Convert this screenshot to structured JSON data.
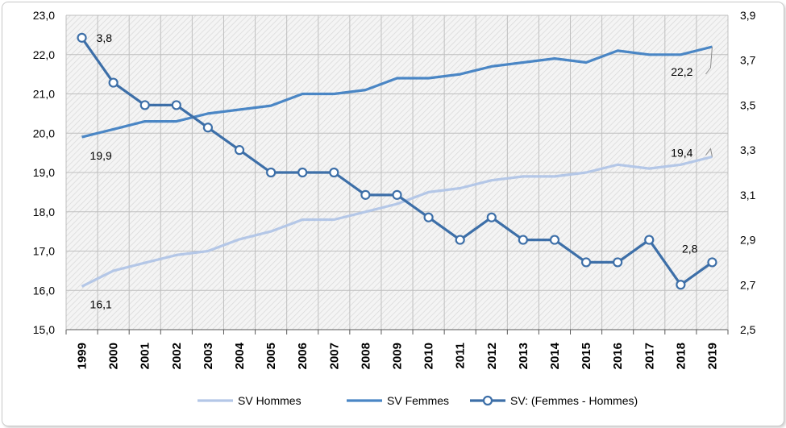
{
  "chart_data": {
    "type": "line",
    "categories": [
      "1999",
      "2000",
      "2001",
      "2002",
      "2003",
      "2004",
      "2005",
      "2006",
      "2007",
      "2008",
      "2009",
      "2010",
      "2011",
      "2012",
      "2013",
      "2014",
      "2015",
      "2016",
      "2017",
      "2018",
      "2019"
    ],
    "series": [
      {
        "name": "SV Hommes",
        "axis": "left",
        "color": "#b4c7e7",
        "values": [
          16.1,
          16.5,
          16.7,
          16.9,
          17.0,
          17.3,
          17.5,
          17.8,
          17.8,
          18.0,
          18.2,
          18.5,
          18.6,
          18.8,
          18.9,
          18.9,
          19.0,
          19.2,
          19.1,
          19.2,
          19.4
        ]
      },
      {
        "name": "SV Femmes",
        "axis": "left",
        "color": "#4a86c5",
        "values": [
          19.9,
          20.1,
          20.3,
          20.3,
          20.5,
          20.6,
          20.7,
          21.0,
          21.0,
          21.1,
          21.4,
          21.4,
          21.5,
          21.7,
          21.8,
          21.9,
          21.8,
          22.1,
          22.0,
          22.0,
          22.2
        ]
      },
      {
        "name": "SV: (Femmes - Hommes)",
        "axis": "right",
        "color": "#3d6fa8",
        "marker": "circle",
        "values": [
          3.8,
          3.6,
          3.5,
          3.5,
          3.4,
          3.3,
          3.2,
          3.2,
          3.2,
          3.1,
          3.1,
          3.0,
          2.9,
          3.0,
          2.9,
          2.9,
          2.8,
          2.8,
          2.9,
          2.7,
          2.8
        ]
      }
    ],
    "data_labels": [
      {
        "series": 0,
        "index": 0,
        "text": "16,1"
      },
      {
        "series": 0,
        "index": 20,
        "text": "19,4"
      },
      {
        "series": 1,
        "index": 0,
        "text": "19,9"
      },
      {
        "series": 1,
        "index": 20,
        "text": "22,2"
      },
      {
        "series": 2,
        "index": 0,
        "text": "3,8"
      },
      {
        "series": 2,
        "index": 20,
        "text": "2,8"
      }
    ],
    "y_left": {
      "min": 15.0,
      "max": 23.0,
      "ticks": [
        "15,0",
        "16,0",
        "17,0",
        "18,0",
        "19,0",
        "20,0",
        "21,0",
        "22,0",
        "23,0"
      ]
    },
    "y_right": {
      "min": 2.5,
      "max": 3.9,
      "ticks": [
        "2,5",
        "2,7",
        "2,9",
        "3,1",
        "3,3",
        "3,5",
        "3,7",
        "3,9"
      ]
    },
    "grid": true,
    "legend_position": "bottom"
  }
}
